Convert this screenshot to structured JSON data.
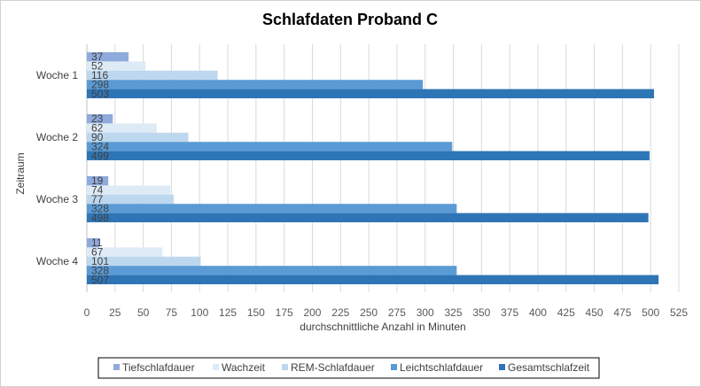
{
  "chart_data": {
    "type": "bar",
    "orientation": "horizontal",
    "title": "Schlafdaten Proband C",
    "xlabel": "durchschnittliche Anzahl in Minuten",
    "ylabel": "Zeitraum",
    "categories": [
      "Woche 1",
      "Woche 2",
      "Woche 3",
      "Woche 4"
    ],
    "xlim": [
      0,
      525
    ],
    "xticks": [
      0,
      25,
      50,
      75,
      100,
      125,
      150,
      175,
      200,
      225,
      250,
      275,
      300,
      325,
      350,
      375,
      400,
      425,
      450,
      475,
      500,
      525
    ],
    "grid": true,
    "legend_position": "bottom",
    "series": [
      {
        "name": "Tiefschlafdauer",
        "color": "#8faadc",
        "values": [
          37,
          23,
          19,
          11
        ]
      },
      {
        "name": "Wachzeit",
        "color": "#deebf7",
        "values": [
          52,
          62,
          74,
          67
        ]
      },
      {
        "name": "REM-Schlafdauer",
        "color": "#bdd7ee",
        "values": [
          116,
          90,
          77,
          101
        ]
      },
      {
        "name": "Leichtschlafdauer",
        "color": "#5b9bd5",
        "values": [
          298,
          324,
          328,
          328
        ]
      },
      {
        "name": "Gesamtschlafzeit",
        "color": "#2e75b6",
        "values": [
          503,
          499,
          498,
          507
        ]
      }
    ]
  }
}
